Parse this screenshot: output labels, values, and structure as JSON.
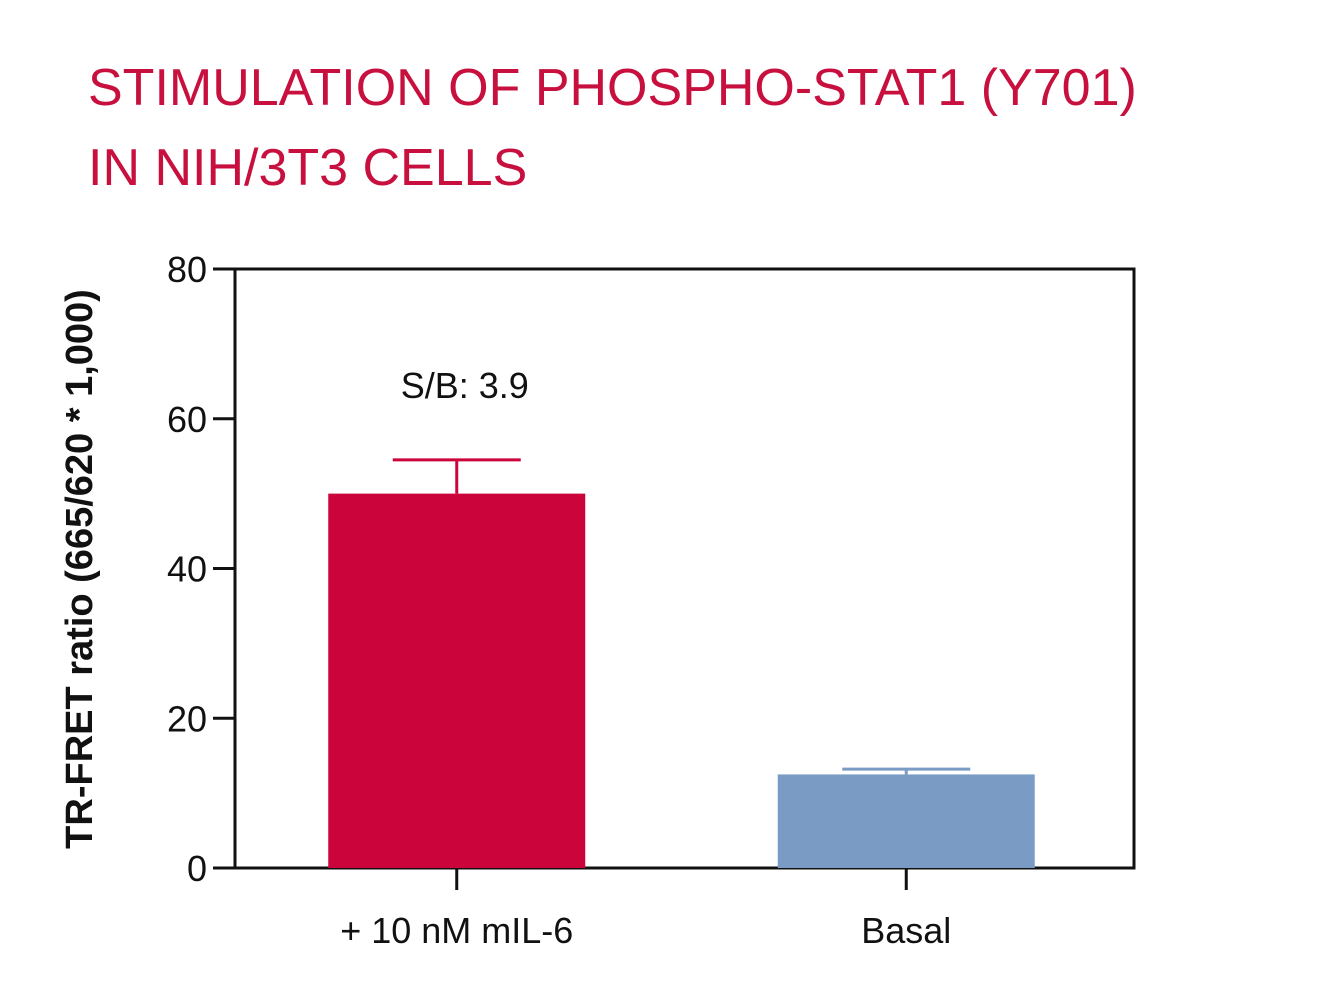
{
  "chart_data": {
    "type": "bar",
    "title_lines": [
      "STIMULATION OF PHOSPHO-STAT1 (Y701)",
      "IN NIH/3T3 CELLS"
    ],
    "xlabel": "",
    "ylabel": "TR-FRET ratio (665/620 * 1,000)",
    "categories": [
      "+ 10 nM mIL-6",
      "Basal"
    ],
    "values": [
      50,
      12.5
    ],
    "errors": [
      4.5,
      0.7
    ],
    "colors": [
      "#cc043c",
      "#7a9bc4"
    ],
    "ylim": [
      0,
      80
    ],
    "yticks": [
      0,
      20,
      40,
      60,
      80
    ],
    "annotations": [
      {
        "text": "S/B: 3.9",
        "category": "+ 10 nM mIL-6"
      }
    ],
    "grid": false,
    "legend": "none"
  }
}
